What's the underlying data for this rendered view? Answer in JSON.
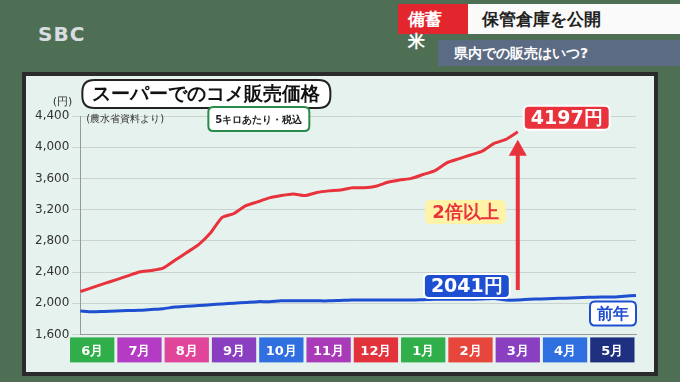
{
  "header": {
    "logo": "SBC",
    "tag": "備蓄米",
    "headline": "保管倉庫を公開",
    "subheadline": "県内での販売はいつ?"
  },
  "chart_data": {
    "type": "line",
    "title": "スーパーでのコメ販売価格",
    "source": "(農水省資料より)",
    "subtitle": "5キロあたり・税込",
    "ylabel": "(円)",
    "categories": [
      null,
      "6月",
      null,
      null,
      null,
      "7月",
      null,
      null,
      null,
      "8月",
      null,
      null,
      null,
      "9月",
      null,
      null,
      null,
      "10月",
      null,
      null,
      null,
      "11月",
      null,
      null,
      null,
      "12月",
      null,
      null,
      null,
      "1月",
      null,
      null,
      null,
      "2月",
      null,
      null,
      null,
      "3月",
      null,
      null,
      null,
      "4月",
      null,
      null,
      null,
      "5月",
      null,
      null
    ],
    "series": [
      {
        "color": "#e8323c",
        "values": [
          2150,
          2200,
          2250,
          2300,
          2350,
          2400,
          2420,
          2450,
          2550,
          2650,
          2750,
          2900,
          3100,
          3150,
          3250,
          3300,
          3350,
          3380,
          3400,
          3380,
          3420,
          3440,
          3450,
          3480,
          3480,
          3500,
          3550,
          3580,
          3600,
          3650,
          3700,
          3800,
          3850,
          3900,
          3950,
          4050,
          4100,
          4197,
          null,
          null,
          null,
          null,
          null,
          null,
          null,
          null,
          null,
          null
        ]
      },
      {
        "name": "前年",
        "color": "#1e4fd0",
        "values": [
          1900,
          1890,
          1895,
          1900,
          1905,
          1910,
          1920,
          1930,
          1950,
          1960,
          1970,
          1980,
          1990,
          2000,
          2010,
          2020,
          2020,
          2030,
          2030,
          2030,
          2030,
          2030,
          2035,
          2040,
          2040,
          2040,
          2040,
          2040,
          2040,
          2045,
          2050,
          2050,
          2050,
          2050,
          2055,
          2060,
          2040,
          2041,
          2050,
          2055,
          2060,
          2065,
          2070,
          2075,
          2080,
          2080,
          2090,
          2100
        ]
      }
    ],
    "annotations": {
      "current_label": "4197円",
      "previous_label": "2041円",
      "comparison": "2倍以上"
    },
    "ylim": [
      1600,
      4400
    ],
    "yticks": [
      {
        "value": 1600,
        "label": "1,600"
      },
      {
        "value": 2000,
        "label": "2,000"
      },
      {
        "value": 2400,
        "label": "2,400"
      },
      {
        "value": 2800,
        "label": "2,800"
      },
      {
        "value": 3200,
        "label": "3,200"
      },
      {
        "value": 3600,
        "label": "3,600"
      },
      {
        "value": 4000,
        "label": "4,000"
      },
      {
        "value": 4400,
        "label": "4,400"
      }
    ],
    "grid": true
  }
}
